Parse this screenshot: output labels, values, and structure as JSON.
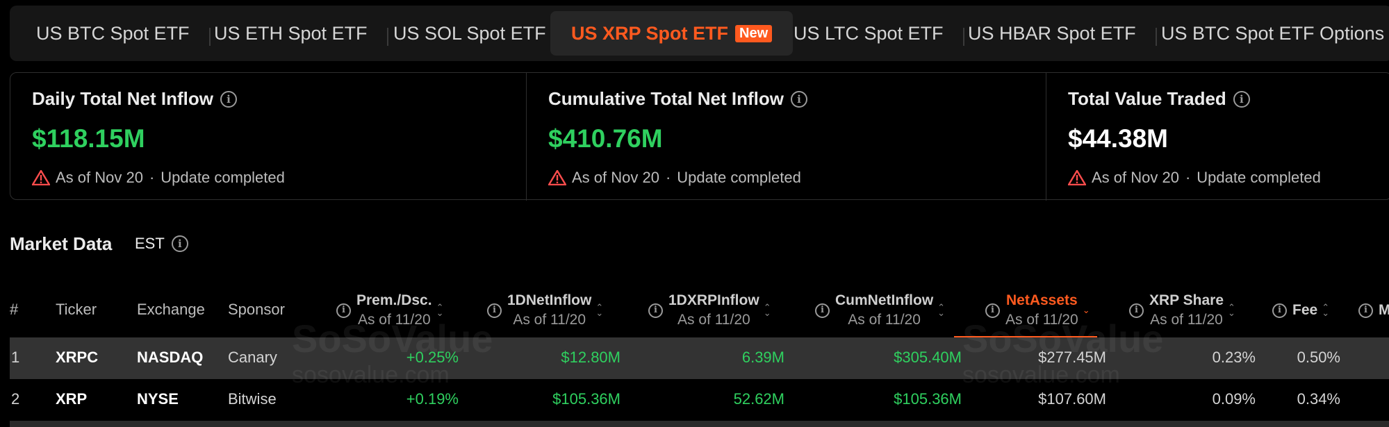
{
  "tabs": [
    {
      "label": "US BTC Spot ETF"
    },
    {
      "label": "US ETH Spot ETF"
    },
    {
      "label": "US SOL Spot ETF"
    },
    {
      "label": "US XRP Spot ETF",
      "badge": "New",
      "active": true
    },
    {
      "label": "US LTC Spot ETF"
    },
    {
      "label": "US HBAR Spot ETF"
    },
    {
      "label": "US BTC Spot ETF Options"
    }
  ],
  "stats": [
    {
      "title": "Daily Total Net Inflow",
      "value": "$118.15M",
      "as_of": "As of Nov 20",
      "status": "Update completed"
    },
    {
      "title": "Cumulative Total Net Inflow",
      "value": "$410.76M",
      "as_of": "As of Nov 20",
      "status": "Update completed"
    },
    {
      "title": "Total Value Traded",
      "value": "$44.38M",
      "as_of": "As of Nov 20",
      "status": "Update completed"
    }
  ],
  "market": {
    "title": "Market Data",
    "timezone": "EST"
  },
  "watermark": {
    "brand": "SoSoValue",
    "domain": "sosovalue.com"
  },
  "table": {
    "headers": {
      "index": "#",
      "ticker": "Ticker",
      "exchange": "Exchange",
      "sponsor": "Sponsor",
      "prem": {
        "l1": "Prem./Dsc.",
        "l2": "As of 11/20"
      },
      "inflow": {
        "l1": "1DNetInflow",
        "l2": "As of 11/20"
      },
      "xrpinflow": {
        "l1": "1DXRPInflow",
        "l2": "As of 11/20"
      },
      "cum": {
        "l1": "CumNetInflow",
        "l2": "As of 11/20"
      },
      "assets": {
        "l1": "NetAssets",
        "l2": "As of 11/20"
      },
      "share": {
        "l1": "XRP Share",
        "l2": "As of 11/20"
      },
      "fee": "Fee",
      "more": "M"
    },
    "rows": [
      {
        "index": "1",
        "ticker": "XRPC",
        "exchange": "NASDAQ",
        "sponsor": "Canary",
        "prem": "+0.25%",
        "inflow": "$12.80M",
        "xrpinflow": "6.39M",
        "cum": "$305.40M",
        "assets": "$277.45M",
        "share": "0.23%",
        "fee": "0.50%"
      },
      {
        "index": "2",
        "ticker": "XRP",
        "exchange": "NYSE",
        "sponsor": "Bitwise",
        "prem": "+0.19%",
        "inflow": "$105.36M",
        "xrpinflow": "52.62M",
        "cum": "$105.36M",
        "assets": "$107.60M",
        "share": "0.09%",
        "fee": "0.34%"
      }
    ]
  },
  "colors": {
    "accent": "#ff5a1f",
    "positive": "#2fd05f",
    "background": "#000000"
  }
}
